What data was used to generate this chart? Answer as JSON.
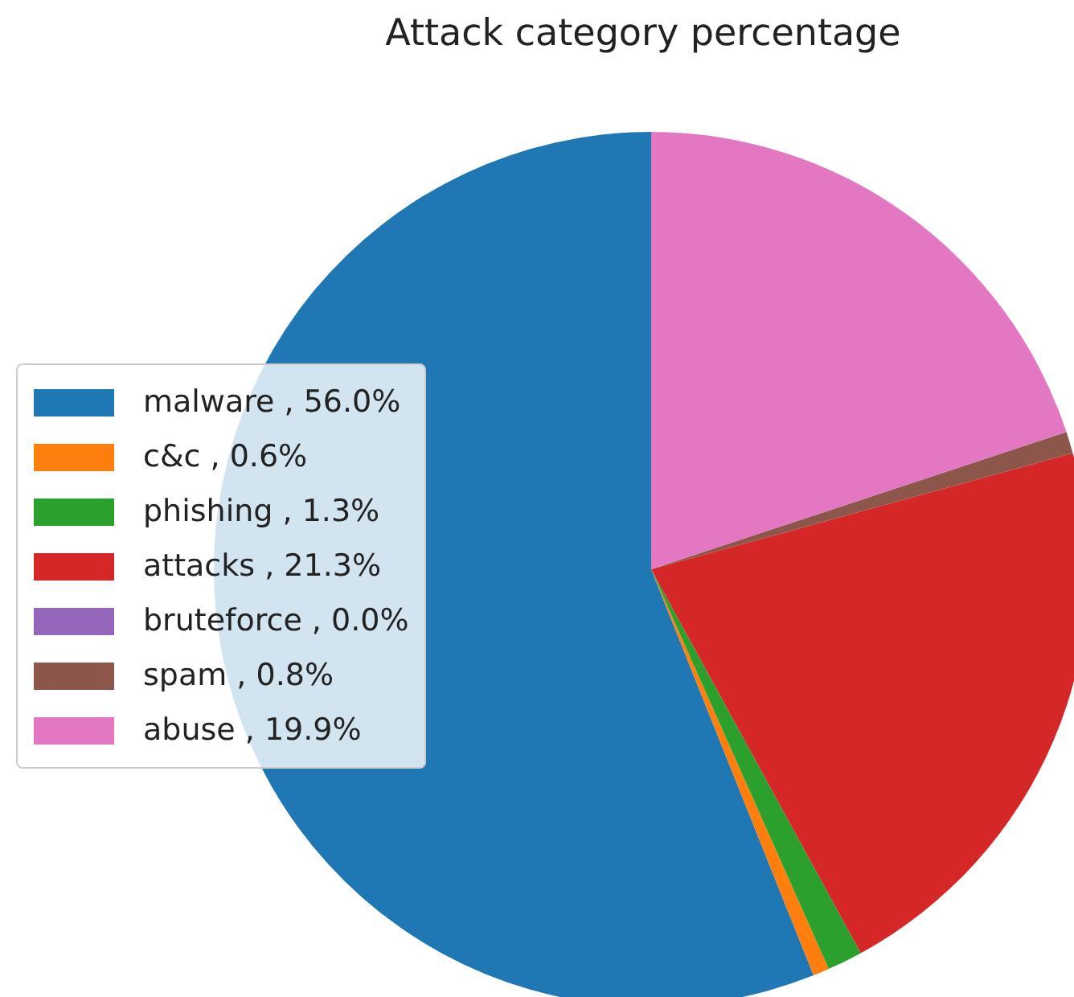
{
  "chart_data": {
    "type": "pie",
    "title": "Attack category percentage",
    "categories": [
      "malware , 56.0%",
      "c&c , 0.6%",
      "phishing , 1.3%",
      "attacks , 21.3%",
      "bruteforce , 0.0%",
      "spam , 0.8%",
      "abuse , 19.9%"
    ],
    "values": [
      56.0,
      0.6,
      1.3,
      21.3,
      0.0,
      0.8,
      19.9
    ],
    "colors": [
      "#1f77b4",
      "#ff7f0e",
      "#2ca02c",
      "#d62728",
      "#9467bd",
      "#8c564b",
      "#e377c2"
    ],
    "legend": "left"
  }
}
